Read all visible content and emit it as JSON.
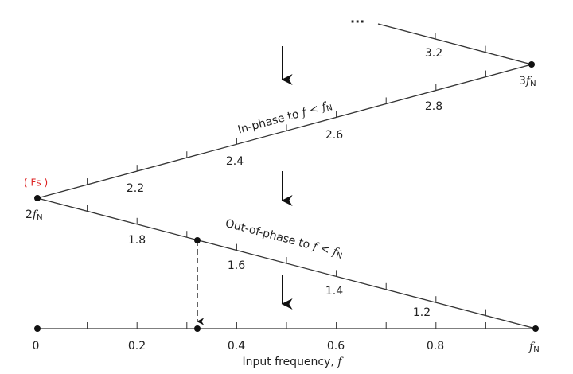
{
  "labels": {
    "fs": "( Fs )",
    "two_fn": [
      "2",
      "f",
      "N"
    ],
    "three_fn": [
      "3",
      "f",
      "N"
    ],
    "fn": [
      "f",
      "N"
    ],
    "dots": "...",
    "bottom": [
      "0",
      "0.2",
      "0.4",
      "0.6",
      "0.8"
    ],
    "descending": [
      "1.8",
      "1.6",
      "1.4",
      "1.2"
    ],
    "ascending": [
      "2.2",
      "2.4",
      "2.6",
      "2.8"
    ],
    "upper": [
      "3.2"
    ],
    "in_phase": [
      "In-phase to ",
      "f",
      " < ",
      "f",
      "N"
    ],
    "out_phase": [
      "Out-of-phase to ",
      "f",
      " < ",
      "f",
      "N"
    ],
    "x_title": [
      "Input frequency, ",
      "f"
    ]
  }
}
